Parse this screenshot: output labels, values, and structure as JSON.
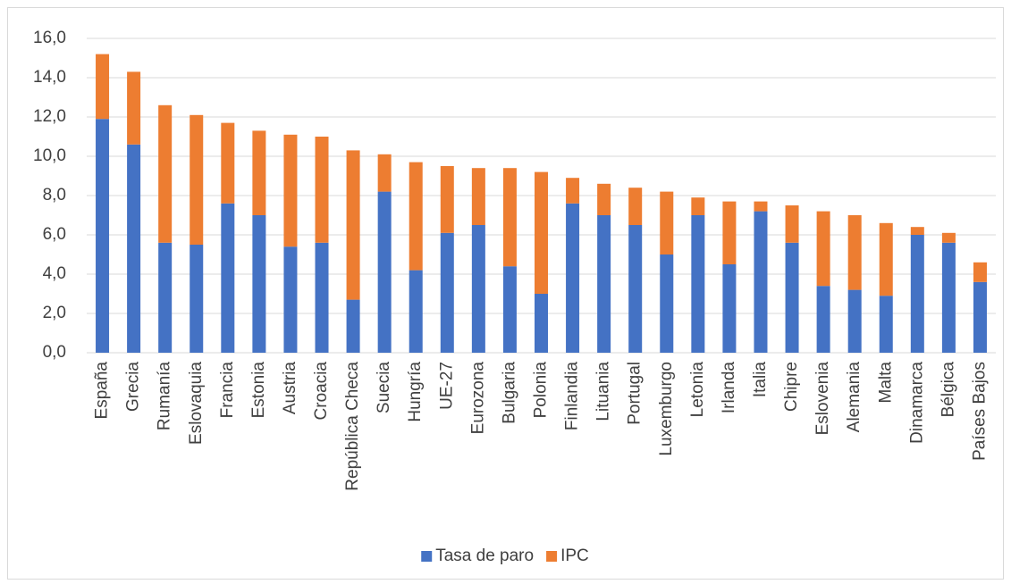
{
  "chart_data": {
    "type": "stacked-bar",
    "categories": [
      "España",
      "Grecia",
      "Rumanía",
      "Eslovaquia",
      "Francia",
      "Estonia",
      "Austria",
      "Croacia",
      "República Checa",
      "Suecia",
      "Hungría",
      "UE-27",
      "Eurozona",
      "Bulgaria",
      "Polonia",
      "Finlandia",
      "Lituania",
      "Portugal",
      "Luxemburgo",
      "Letonia",
      "Irlanda",
      "Italia",
      "Chipre",
      "Eslovenia",
      "Alemania",
      "Malta",
      "Dinamarca",
      "Bélgica",
      "Países Bajos"
    ],
    "series": [
      {
        "name": "Tasa de paro",
        "color": "#4472c4",
        "values": [
          11.9,
          10.6,
          5.6,
          5.5,
          7.6,
          7.0,
          5.4,
          5.6,
          2.7,
          8.2,
          4.2,
          6.1,
          6.5,
          4.4,
          3.0,
          7.6,
          7.0,
          6.5,
          5.0,
          7.0,
          4.5,
          7.2,
          5.6,
          3.4,
          3.2,
          2.9,
          6.0,
          5.6,
          3.6
        ]
      },
      {
        "name": "IPC",
        "color": "#ed7d31",
        "values": [
          3.3,
          3.7,
          7.0,
          6.6,
          4.1,
          4.3,
          5.7,
          5.4,
          7.6,
          1.9,
          5.5,
          3.4,
          2.9,
          5.0,
          6.2,
          1.3,
          1.6,
          1.9,
          3.2,
          0.9,
          3.2,
          0.5,
          1.9,
          3.8,
          3.8,
          3.7,
          0.4,
          0.5,
          1.0
        ]
      }
    ],
    "ylim": [
      0,
      16
    ],
    "yticks": [
      {
        "value": 0,
        "label": "0,0"
      },
      {
        "value": 2,
        "label": "2,0"
      },
      {
        "value": 4,
        "label": "4,0"
      },
      {
        "value": 6,
        "label": "6,0"
      },
      {
        "value": 8,
        "label": "8,0"
      },
      {
        "value": 10,
        "label": "10,0"
      },
      {
        "value": 12,
        "label": "12,0"
      },
      {
        "value": 14,
        "label": "14,0"
      },
      {
        "value": 16,
        "label": "16,0"
      }
    ],
    "grid": true
  }
}
